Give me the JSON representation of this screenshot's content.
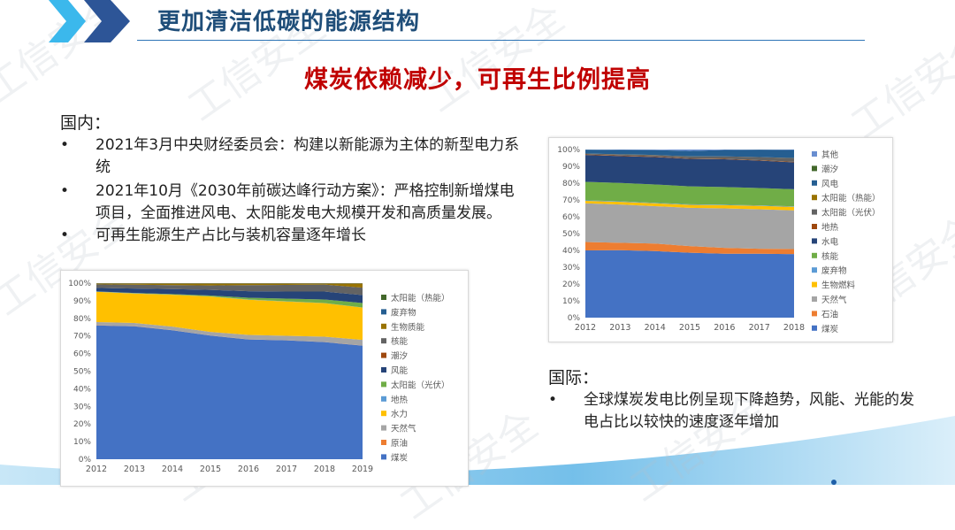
{
  "header": {
    "title": "更加清洁低碳的能源结构"
  },
  "subtitle": "煤炭依赖减少，可再生比例提高",
  "domestic": {
    "heading": "国内：",
    "bullets": [
      "2021年3月中央财经委员会：构建以新能源为主体的新型电力系统",
      "2021年10月《2030年前碳达峰行动方案》：严格控制新增煤电项目，全面推进风电、太阳能发电大规模开发和高质量发展。",
      "可再生能源生产占比与装机容量逐年增长"
    ]
  },
  "international": {
    "heading": "国际：",
    "bullets": [
      "全球煤炭发电比例呈现下降趋势，风能、光能的发电占比以较快的速度逐年增加"
    ]
  },
  "watermark": "工信安全",
  "chart_data": [
    {
      "type": "area",
      "stacked": true,
      "title": "",
      "xlabel": "",
      "ylabel": "",
      "ylim": [
        0,
        100
      ],
      "yticks": [
        "0%",
        "10%",
        "20%",
        "30%",
        "40%",
        "50%",
        "60%",
        "70%",
        "80%",
        "90%",
        "100%"
      ],
      "x": [
        "2012",
        "2013",
        "2014",
        "2015",
        "2016",
        "2017",
        "2018",
        "2019"
      ],
      "legend_position": "right",
      "series": [
        {
          "name": "煤炭",
          "color": "#4472c4",
          "values": [
            76,
            75.5,
            73,
            70,
            68,
            67.5,
            66.5,
            64.5
          ]
        },
        {
          "name": "原油",
          "color": "#ed7d31",
          "values": [
            0.1,
            0.1,
            0.1,
            0.1,
            0.1,
            0.1,
            0.1,
            0.1
          ]
        },
        {
          "name": "天然气",
          "color": "#a5a5a5",
          "values": [
            1.8,
            1.8,
            2,
            2,
            2.5,
            2.5,
            3,
            3.2
          ]
        },
        {
          "name": "水力",
          "color": "#ffc000",
          "values": [
            17.2,
            16.7,
            18,
            20,
            20,
            19.5,
            19,
            18.3
          ]
        },
        {
          "name": "地热",
          "color": "#5b9bd5",
          "values": [
            0.1,
            0.1,
            0.1,
            0.1,
            0.1,
            0.1,
            0.1,
            0.1
          ]
        },
        {
          "name": "太阳能（光伏）",
          "color": "#70ad47",
          "values": [
            0.1,
            0.2,
            0.3,
            0.5,
            1,
            1.5,
            2,
            2.5
          ]
        },
        {
          "name": "风能",
          "color": "#264478",
          "values": [
            2,
            2.5,
            2.8,
            3.2,
            3.7,
            4,
            4.5,
            4.5
          ]
        },
        {
          "name": "潮汐",
          "color": "#9e480e",
          "values": [
            0,
            0,
            0,
            0,
            0,
            0,
            0,
            0
          ]
        },
        {
          "name": "核能",
          "color": "#636363",
          "values": [
            2,
            2.2,
            2.3,
            2.5,
            3.5,
            3.8,
            4,
            4.2
          ]
        },
        {
          "name": "生物质能",
          "color": "#997300",
          "values": [
            0.6,
            0.8,
            1,
            1.2,
            1.0,
            0.9,
            0.7,
            2.5
          ]
        },
        {
          "name": "废弃物",
          "color": "#255e91",
          "values": [
            0.1,
            0.1,
            0.1,
            0.1,
            0.1,
            0.1,
            0.1,
            0.1
          ]
        },
        {
          "name": "太阳能（热能）",
          "color": "#43682b",
          "values": [
            0,
            0,
            0,
            0,
            0,
            0,
            0,
            0
          ]
        }
      ]
    },
    {
      "type": "area",
      "stacked": true,
      "title": "",
      "xlabel": "",
      "ylabel": "",
      "ylim": [
        0,
        100
      ],
      "yticks": [
        "0%",
        "10%",
        "20%",
        "30%",
        "40%",
        "50%",
        "60%",
        "70%",
        "80%",
        "90%",
        "100%"
      ],
      "x": [
        "2012",
        "2013",
        "2014",
        "2015",
        "2016",
        "2017",
        "2018"
      ],
      "legend_position": "right",
      "series": [
        {
          "name": "煤炭",
          "color": "#4472c4",
          "values": [
            40,
            40.5,
            40,
            39,
            38,
            38,
            37.8
          ]
        },
        {
          "name": "石油",
          "color": "#ed7d31",
          "values": [
            5,
            4.5,
            4.5,
            4,
            3.5,
            3,
            3
          ]
        },
        {
          "name": "天然气",
          "color": "#a5a5a5",
          "values": [
            23,
            23,
            22.5,
            23,
            23.5,
            23.5,
            23
          ]
        },
        {
          "name": "生物燃料",
          "color": "#ffc000",
          "values": [
            1.5,
            1.6,
            1.7,
            1.8,
            1.9,
            2,
            2.1
          ]
        },
        {
          "name": "废弃物",
          "color": "#5b9bd5",
          "values": [
            0.3,
            0.3,
            0.3,
            0.3,
            0.3,
            0.3,
            0.3
          ]
        },
        {
          "name": "核能",
          "color": "#70ad47",
          "values": [
            11,
            11,
            11,
            10.8,
            10.5,
            10.3,
            10.2
          ]
        },
        {
          "name": "水电",
          "color": "#264478",
          "values": [
            16,
            16.2,
            16.5,
            16.5,
            16.5,
            16.3,
            16
          ]
        },
        {
          "name": "地热",
          "color": "#9e480e",
          "values": [
            0.3,
            0.3,
            0.3,
            0.3,
            0.3,
            0.3,
            0.3
          ]
        },
        {
          "name": "太阳能（光伏）",
          "color": "#636363",
          "values": [
            0.5,
            0.7,
            0.9,
            1.1,
            1.4,
            1.8,
            2.2
          ]
        },
        {
          "name": "太阳能（热能）",
          "color": "#997300",
          "values": [
            0.05,
            0.05,
            0.05,
            0.05,
            0.05,
            0.05,
            0.05
          ]
        },
        {
          "name": "风电",
          "color": "#255e91",
          "values": [
            2.3,
            2.6,
            2.9,
            3.3,
            3.8,
            4.4,
            4.8
          ]
        },
        {
          "name": "潮汐",
          "color": "#43682b",
          "values": [
            0.01,
            0.01,
            0.01,
            0.01,
            0.01,
            0.01,
            0.01
          ]
        },
        {
          "name": "其他",
          "color": "#698ed0",
          "values": [
            0.04,
            0.24,
            0.34,
            0.84,
            0.24,
            0.04,
            0.25
          ]
        }
      ]
    }
  ]
}
